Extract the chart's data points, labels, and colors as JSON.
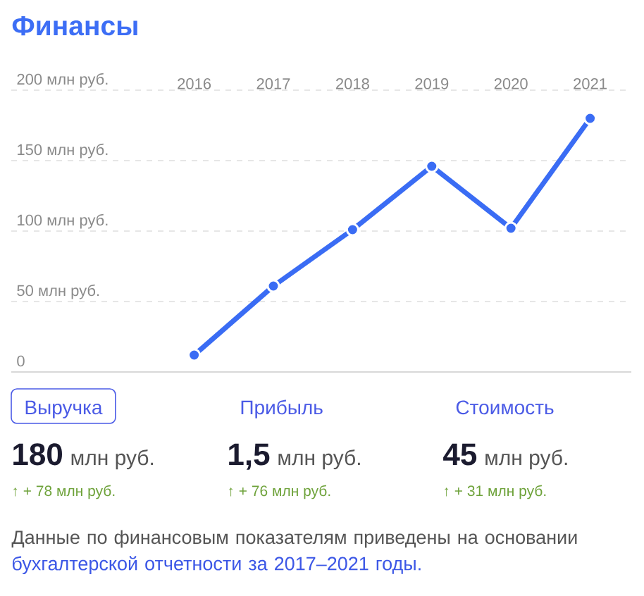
{
  "chart_data": [
    {
      "type": "line",
      "title": "Финансы",
      "categories": [
        "2016",
        "2017",
        "2018",
        "2019",
        "2020",
        "2021"
      ],
      "values": [
        12,
        61,
        101,
        146,
        102,
        180
      ],
      "color": "#3a6cf4",
      "ylim": [
        0,
        200
      ],
      "yticks": [
        0,
        {
          "value": 50,
          "label": "50 млн руб."
        },
        {
          "value": 100,
          "label": "100 млн руб."
        },
        {
          "value": 150,
          "label": "150 млн руб."
        },
        {
          "value": 200,
          "label": "200 млн руб."
        }
      ],
      "grid": "y",
      "marker": "circle",
      "line_style": "solid"
    },
    {
      "type": "other",
      "categories": [
        "Выручка",
        "Прибыль",
        "Стоимость"
      ],
      "annotations": [
        "180",
        "млн руб.",
        "1,5",
        "млн руб.",
        "45",
        "млн руб.",
        "↑ + 78 млн руб.",
        "↑ + 76 млн руб.",
        "↑ + 31 млн руб.",
        "Данные по финансовым показателям приведены на основании",
        "бухгалтерской отчетности за 2017–2021 годы."
      ]
    }
  ]
}
